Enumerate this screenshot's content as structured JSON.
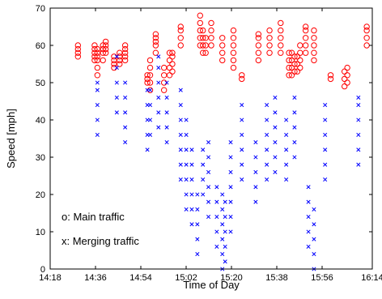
{
  "chart_data": {
    "type": "scatter",
    "xlabel": "Time of Day",
    "ylabel": "Speed [mph]",
    "xlim": [
      "14:18",
      "16:14"
    ],
    "ylim": [
      0,
      70
    ],
    "x_ticks": [
      "14:18",
      "14:36",
      "14:54",
      "15:02",
      "15:20",
      "15:38",
      "15:56",
      "16:14"
    ],
    "y_ticks": [
      0,
      10,
      20,
      30,
      40,
      50,
      60,
      70
    ],
    "grid": false,
    "legend": {
      "placement": "bottom-left",
      "entries": [
        "o: Main traffic",
        "x: Merging traffic"
      ]
    },
    "series": [
      {
        "marker": "o",
        "color": "#ff0000",
        "clusters": [
          {
            "x": "14:28",
            "y": [
              57,
              58,
              59,
              60
            ]
          },
          {
            "x": "14:34",
            "y": [
              56,
              57,
              58,
              59,
              60
            ]
          },
          {
            "x": "14:35",
            "y": [
              52,
              54,
              56,
              57,
              58,
              59
            ]
          },
          {
            "x": "14:37",
            "y": [
              56,
              58,
              59,
              60
            ]
          },
          {
            "x": "14:38",
            "y": [
              58,
              59,
              60,
              61
            ]
          },
          {
            "x": "14:41",
            "y": [
              54,
              55,
              56,
              57
            ]
          },
          {
            "x": "14:43",
            "y": [
              55,
              56,
              57,
              58
            ]
          },
          {
            "x": "14:45",
            "y": [
              56,
              57,
              58,
              59,
              60
            ]
          },
          {
            "x": "14:53",
            "y": [
              50,
              51,
              52
            ]
          },
          {
            "x": "14:54",
            "y": [
              48,
              50,
              52,
              54,
              56
            ]
          },
          {
            "x": "14:56",
            "y": [
              58,
              60,
              61,
              62,
              63
            ]
          },
          {
            "x": "14:59",
            "y": [
              48,
              50,
              52,
              54
            ]
          },
          {
            "x": "15:01",
            "y": [
              52,
              54,
              56,
              58
            ]
          },
          {
            "x": "15:02",
            "y": [
              53,
              55,
              57,
              58
            ]
          },
          {
            "x": "15:05",
            "y": [
              60,
              62,
              64,
              65
            ]
          },
          {
            "x": "15:12",
            "y": [
              60,
              62,
              64,
              66,
              68
            ]
          },
          {
            "x": "15:13",
            "y": [
              58,
              60,
              62,
              64
            ]
          },
          {
            "x": "15:14",
            "y": [
              58,
              60,
              62
            ]
          },
          {
            "x": "15:16",
            "y": [
              60,
              62,
              64,
              66
            ]
          },
          {
            "x": "15:20",
            "y": [
              56,
              58,
              60,
              62
            ]
          },
          {
            "x": "15:24",
            "y": [
              54,
              56,
              58,
              60,
              62,
              64
            ]
          },
          {
            "x": "15:27",
            "y": [
              51,
              52
            ]
          },
          {
            "x": "15:33",
            "y": [
              56,
              58,
              60,
              62,
              63
            ]
          },
          {
            "x": "15:37",
            "y": [
              58,
              60,
              62,
              64
            ]
          },
          {
            "x": "15:41",
            "y": [
              58,
              60,
              62,
              64,
              66
            ]
          },
          {
            "x": "15:44",
            "y": [
              52,
              54,
              56,
              58
            ]
          },
          {
            "x": "15:45",
            "y": [
              52,
              54,
              56,
              58
            ]
          },
          {
            "x": "15:46",
            "y": [
              53,
              55,
              57
            ]
          },
          {
            "x": "15:47",
            "y": [
              53,
              55,
              57
            ]
          },
          {
            "x": "15:48",
            "y": [
              54,
              56,
              58,
              60
            ]
          },
          {
            "x": "15:50",
            "y": [
              58,
              60,
              62,
              64,
              65
            ]
          },
          {
            "x": "15:53",
            "y": [
              56,
              58,
              60,
              62,
              64
            ]
          },
          {
            "x": "15:59",
            "y": [
              51,
              52
            ]
          },
          {
            "x": "16:04",
            "y": [
              49,
              51,
              53
            ]
          },
          {
            "x": "16:05",
            "y": [
              50,
              52,
              54
            ]
          },
          {
            "x": "16:12",
            "y": [
              60,
              62,
              64,
              65
            ]
          }
        ]
      },
      {
        "marker": "x",
        "color": "#0000ff",
        "clusters": [
          {
            "x": "14:35",
            "y": [
              36,
              40,
              44,
              48,
              50
            ]
          },
          {
            "x": "14:42",
            "y": [
              42,
              46,
              50,
              54,
              57
            ]
          },
          {
            "x": "14:45",
            "y": [
              34,
              38,
              42,
              46,
              50
            ]
          },
          {
            "x": "14:53",
            "y": [
              32,
              36,
              40,
              44,
              48
            ]
          },
          {
            "x": "14:54",
            "y": [
              36,
              40,
              44,
              48
            ]
          },
          {
            "x": "14:57",
            "y": [
              38,
              42,
              46,
              50,
              54,
              57
            ]
          },
          {
            "x": "15:00",
            "y": [
              34,
              38,
              42,
              46,
              50
            ]
          },
          {
            "x": "15:05",
            "y": [
              24,
              28,
              32,
              36,
              40,
              44,
              48
            ]
          },
          {
            "x": "15:07",
            "y": [
              16,
              20,
              24,
              28,
              32,
              36,
              40
            ]
          },
          {
            "x": "15:09",
            "y": [
              12,
              16,
              20,
              24,
              28,
              32
            ]
          },
          {
            "x": "15:11",
            "y": [
              4,
              8,
              12,
              16,
              20
            ]
          },
          {
            "x": "15:13",
            "y": [
              20,
              24,
              28,
              32
            ]
          },
          {
            "x": "15:15",
            "y": [
              14,
              18,
              22,
              26,
              30,
              34
            ]
          },
          {
            "x": "15:18",
            "y": [
              6,
              10,
              14,
              18,
              22
            ]
          },
          {
            "x": "15:20",
            "y": [
              0,
              4,
              8,
              12,
              16,
              20
            ]
          },
          {
            "x": "15:21",
            "y": [
              2,
              6,
              10,
              14,
              18
            ]
          },
          {
            "x": "15:23",
            "y": [
              10,
              14,
              18,
              22,
              26,
              30,
              34
            ]
          },
          {
            "x": "15:27",
            "y": [
              24,
              28,
              32,
              36,
              40,
              44
            ]
          },
          {
            "x": "15:32",
            "y": [
              18,
              22,
              26,
              30,
              34
            ]
          },
          {
            "x": "15:36",
            "y": [
              24,
              28,
              32,
              36,
              40,
              44
            ]
          },
          {
            "x": "15:39",
            "y": [
              26,
              30,
              34,
              38,
              42,
              46
            ]
          },
          {
            "x": "15:43",
            "y": [
              24,
              28,
              32,
              36,
              40
            ]
          },
          {
            "x": "15:46",
            "y": [
              30,
              34,
              38,
              42,
              46
            ]
          },
          {
            "x": "15:51",
            "y": [
              6,
              10,
              14,
              18,
              22
            ]
          },
          {
            "x": "15:53",
            "y": [
              0,
              4,
              8,
              12,
              16
            ]
          },
          {
            "x": "15:57",
            "y": [
              24,
              28,
              32,
              36,
              40,
              44
            ]
          },
          {
            "x": "16:09",
            "y": [
              28,
              32,
              36,
              40,
              44,
              46
            ]
          }
        ]
      }
    ]
  }
}
